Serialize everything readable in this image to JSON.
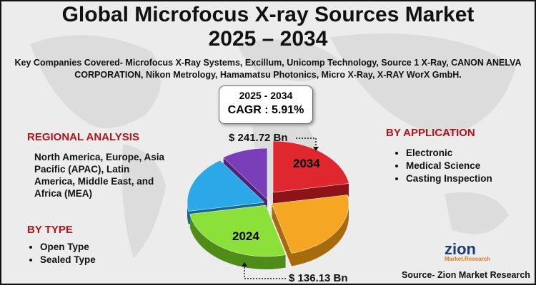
{
  "header": {
    "title_line1": "Global Microfocus X-ray Sources Market",
    "title_line2": "2025 – 2034",
    "companies": "Key Companies Covered- Microfocus X-Ray Systems, Excillum, Unicomp Technology, Source 1 X-Ray, CANON ANELVA CORPORATION, Nikon Metrology, Hamamatsu Photonics, Micro X-Ray, X-RAY WorX GmbH."
  },
  "cagr_box": {
    "period": "2025 - 2034",
    "cagr": "CAGR : 5.91%"
  },
  "pie": {
    "value_2034": "$ 241.72 Bn",
    "label_2034": "2034",
    "label_2024": "2024",
    "value_2024": "$ 136.13 Bn"
  },
  "regional": {
    "heading": "REGIONAL ANALYSIS",
    "text": "North America, Europe, Asia Pacific (APAC), Latin America, Middle East, and Africa (MEA)"
  },
  "by_type": {
    "heading": "BY TYPE",
    "items": [
      "Open Type",
      "Sealed Type"
    ]
  },
  "by_application": {
    "heading": "BY APPLICATION",
    "items": [
      "Electronic",
      "Medical Science",
      "Casting Inspection"
    ]
  },
  "logo": {
    "name": "zion",
    "sub": "Market.Research"
  },
  "source": "Source- Zion Market Research"
}
